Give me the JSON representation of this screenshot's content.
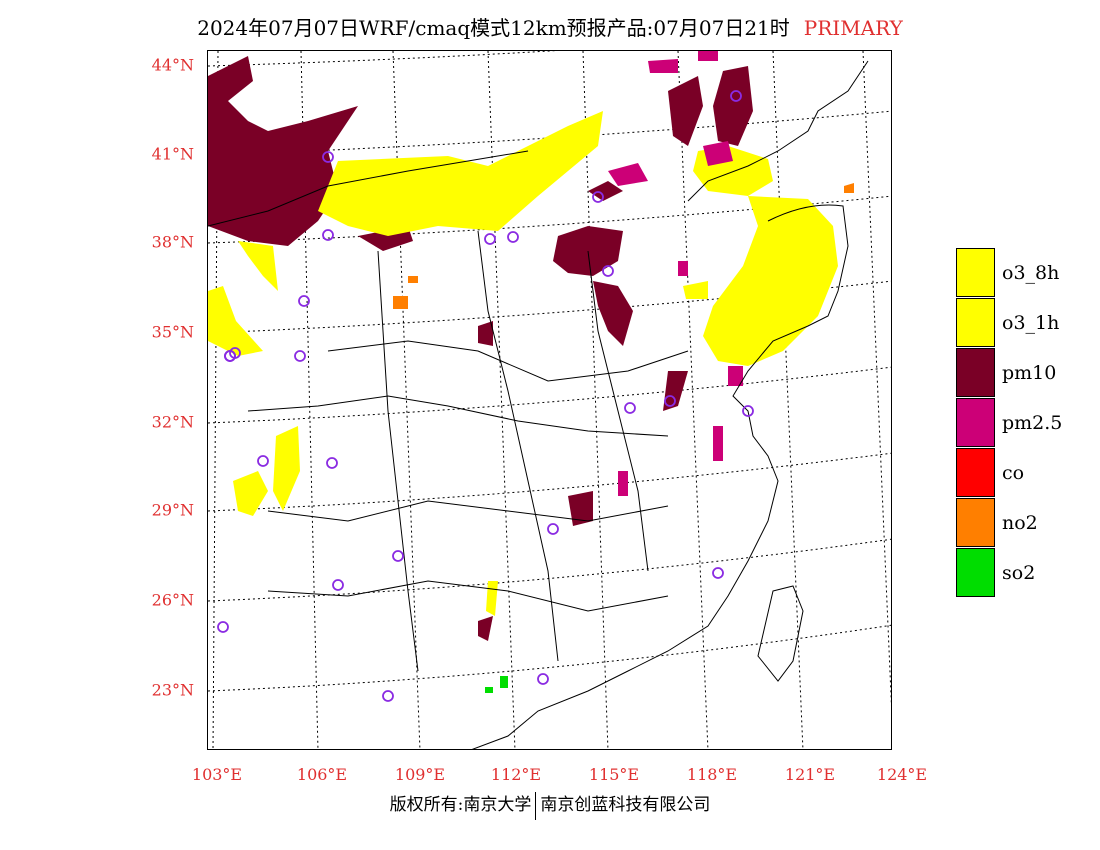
{
  "title": {
    "main": "2024年07月07日WRF/cmaq模式12km预报产品:07月07日21时",
    "tag": "PRIMARY"
  },
  "map": {
    "lat_labels": [
      "44°N",
      "41°N",
      "38°N",
      "35°N",
      "32°N",
      "29°N",
      "26°N",
      "23°N"
    ],
    "lon_labels": [
      "103°E",
      "106°E",
      "109°E",
      "112°E",
      "115°E",
      "118°E",
      "121°E",
      "124°E"
    ],
    "colors": {
      "o3_8h": "#ffff00",
      "o3_1h": "#ffff00",
      "pm10": "#7a0026",
      "pm25": "#cc0077",
      "co": "#ff0000",
      "no2": "#ff7f00",
      "so2": "#00dd00",
      "station": "#8a2be2",
      "grid": "#000000"
    }
  },
  "legend": {
    "items": [
      {
        "label": "o3_8h",
        "color": "#ffff00"
      },
      {
        "label": "o3_1h",
        "color": "#ffff00"
      },
      {
        "label": "pm10",
        "color": "#7a0026"
      },
      {
        "label": "pm2.5",
        "color": "#cc0077"
      },
      {
        "label": "co",
        "color": "#ff0000"
      },
      {
        "label": "no2",
        "color": "#ff7f00"
      },
      {
        "label": "so2",
        "color": "#00dd00"
      }
    ]
  },
  "footer": {
    "left": "版权所有:南京大学",
    "right": "南京创蓝科技有限公司"
  }
}
